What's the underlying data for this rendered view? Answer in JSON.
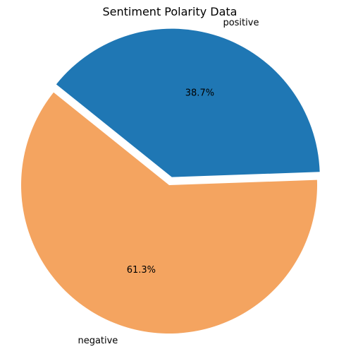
{
  "chart_data": {
    "type": "pie",
    "title": "Sentiment Polarity  Data",
    "categories": [
      "positive",
      "negative"
    ],
    "values": [
      38.7,
      61.3
    ],
    "value_labels": [
      "38.7%",
      "61.3%"
    ],
    "colors": [
      "#1f77b4",
      "#f4a460"
    ],
    "exploded": [
      "positive"
    ],
    "start_angle_deg": 2
  }
}
